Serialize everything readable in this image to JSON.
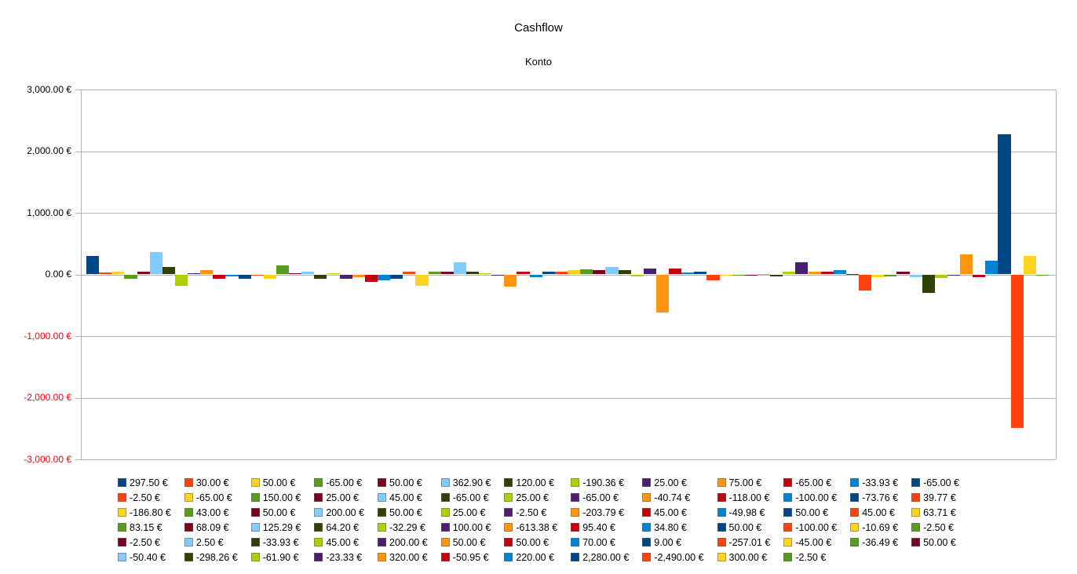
{
  "chart_data": {
    "type": "bar",
    "title": "Cashflow",
    "subtitle": "Konto",
    "xlabel": "",
    "ylabel": "",
    "ylim": [
      -3000,
      3000
    ],
    "grid": true,
    "legend_position": "bottom",
    "legend_columns": 13,
    "values": [
      297.5,
      30.0,
      50.0,
      -65.0,
      50.0,
      362.9,
      120.0,
      -190.36,
      25.0,
      75.0,
      -65.0,
      -33.93,
      -65.0,
      -2.5,
      -65.0,
      150.0,
      25.0,
      45.0,
      -65.0,
      25.0,
      -65.0,
      -40.74,
      -118.0,
      -100.0,
      -73.76,
      39.77,
      -186.8,
      43.0,
      50.0,
      200.0,
      50.0,
      25.0,
      -2.5,
      -203.79,
      45.0,
      -49.98,
      50.0,
      45.0,
      63.71,
      83.15,
      68.09,
      125.29,
      64.2,
      -32.29,
      100.0,
      -613.38,
      95.4,
      34.8,
      50.0,
      -100.0,
      -10.69,
      -2.5,
      -2.5,
      2.5,
      -33.93,
      45.0,
      200.0,
      50.0,
      50.0,
      70.0,
      9.0,
      -257.01,
      -45.0,
      -36.49,
      50.0,
      -50.4,
      -298.26,
      -61.9,
      -23.33,
      320.0,
      -50.95,
      220.0,
      2280.0,
      -2490.0,
      300.0,
      -2.5
    ],
    "legend_labels": [
      "297.50 €",
      "30.00 €",
      "50.00 €",
      "-65.00 €",
      "50.00 €",
      "362.90 €",
      "120.00 €",
      "-190.36 €",
      "25.00 €",
      "75.00 €",
      "-65.00 €",
      "-33.93 €",
      "-65.00 €",
      "-2.50 €",
      "-65.00 €",
      "150.00 €",
      "25.00 €",
      "45.00 €",
      "-65.00 €",
      "25.00 €",
      "-65.00 €",
      "-40.74 €",
      "-118.00 €",
      "-100.00 €",
      "-73.76 €",
      "39.77 €",
      "-186.80 €",
      "43.00 €",
      "50.00 €",
      "200.00 €",
      "50.00 €",
      "25.00 €",
      "-2.50 €",
      "-203.79 €",
      "45.00 €",
      "-49.98 €",
      "50.00 €",
      "45.00 €",
      "63.71 €",
      "83.15 €",
      "68.09 €",
      "125.29 €",
      "64.20 €",
      "-32.29 €",
      "100.00 €",
      "-613.38 €",
      "95.40 €",
      "34.80 €",
      "50.00 €",
      "-100.00 €",
      "-10.69 €",
      "-2.50 €",
      "-2.50 €",
      "2.50 €",
      "-33.93 €",
      "45.00 €",
      "200.00 €",
      "50.00 €",
      "50.00 €",
      "70.00 €",
      "9.00 €",
      "-257.01 €",
      "-45.00 €",
      "-36.49 €",
      "50.00 €",
      "-50.40 €",
      "-298.26 €",
      "-61.90 €",
      "-23.33 €",
      "320.00 €",
      "-50.95 €",
      "220.00 €",
      "2,280.00 €",
      "-2,490.00 €",
      "300.00 €",
      "-2.50 €"
    ],
    "y_ticks": [
      {
        "value": 3000,
        "label": "3,000.00 €"
      },
      {
        "value": 2000,
        "label": "2,000.00 €"
      },
      {
        "value": 1000,
        "label": "1,000.00 €"
      },
      {
        "value": 0,
        "label": "0.00 €"
      },
      {
        "value": -1000,
        "label": "-1,000.00 €"
      },
      {
        "value": -2000,
        "label": "-2,000.00 €"
      },
      {
        "value": -3000,
        "label": "-3,000.00 €"
      }
    ],
    "palette": [
      "#004586",
      "#FF420E",
      "#FFD320",
      "#579D1C",
      "#7E0021",
      "#83CAFF",
      "#314004",
      "#AECF00",
      "#4B1F6F",
      "#FF950E",
      "#C5000B",
      "#0084D1"
    ],
    "colors": {
      "grid": "#b3b3b3",
      "axis": "#b3b3b3",
      "positive_tick_label": "#000000",
      "negative_tick_label": "#ff0000"
    }
  }
}
